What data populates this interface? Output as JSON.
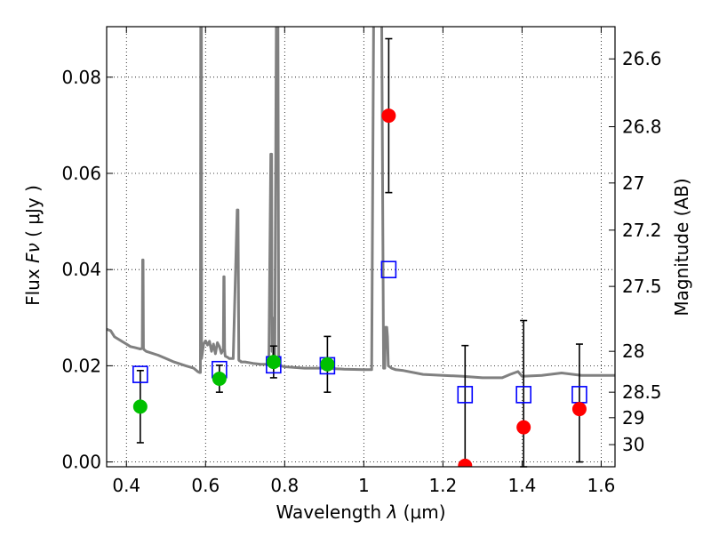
{
  "chart_data": {
    "type": "scatter",
    "title": "",
    "xlabel_prefix": "Wavelength  ",
    "xlabel_symbol": "λ",
    "xlabel_unit": " (μm)",
    "ylabel_prefix": "Flux  ",
    "ylabel_symbol": "Fν",
    "ylabel_unit": "  ( μJy )",
    "y2label": "Magnitude (AB)",
    "xlim": [
      0.35,
      1.635
    ],
    "ylim": [
      -0.001,
      0.0905
    ],
    "grid": true,
    "xticks": [
      0.4,
      0.6,
      0.8,
      1.0,
      1.2,
      1.4,
      1.6
    ],
    "xtick_labels": [
      "0.4",
      "0.6",
      "0.8",
      "1",
      "1.2",
      "1.4",
      "1.6"
    ],
    "yticks": [
      0.0,
      0.02,
      0.04,
      0.06,
      0.08
    ],
    "ytick_labels": [
      "0.00",
      "0.02",
      "0.04",
      "0.06",
      "0.08"
    ],
    "y2ticks": [
      {
        "label": "26.6",
        "flux": 0.0838
      },
      {
        "label": "26.8",
        "flux": 0.0697
      },
      {
        "label": "27",
        "flux": 0.058
      },
      {
        "label": "27.2",
        "flux": 0.0482
      },
      {
        "label": "27.5",
        "flux": 0.0365
      },
      {
        "label": "28",
        "flux": 0.023
      },
      {
        "label": "28.5",
        "flux": 0.0145
      },
      {
        "label": "29",
        "flux": 0.0092
      },
      {
        "label": "30",
        "flux": 0.0036
      }
    ],
    "series": [
      {
        "marker": "line",
        "color": "#808080",
        "x": [
          0.35,
          0.36,
          0.37,
          0.38,
          0.39,
          0.4,
          0.41,
          0.42,
          0.43,
          0.435,
          0.44,
          0.441,
          0.442,
          0.443,
          0.445,
          0.45,
          0.48,
          0.5,
          0.52,
          0.55,
          0.57,
          0.58,
          0.585,
          0.587,
          0.588,
          0.5885,
          0.589,
          0.5895,
          0.59,
          0.595,
          0.6,
          0.605,
          0.61,
          0.615,
          0.62,
          0.625,
          0.63,
          0.635,
          0.64,
          0.645,
          0.646,
          0.647,
          0.648,
          0.649,
          0.65,
          0.655,
          0.66,
          0.67,
          0.68,
          0.682,
          0.684,
          0.686,
          0.688,
          0.69,
          0.7,
          0.72,
          0.74,
          0.76,
          0.765,
          0.767,
          0.768,
          0.769,
          0.772,
          0.775,
          0.779,
          0.78,
          0.781,
          0.782,
          0.783,
          0.785,
          0.79,
          0.8,
          0.85,
          0.9,
          0.95,
          1.0,
          1.02,
          1.025,
          1.03,
          1.035,
          1.04,
          1.045,
          1.05,
          1.053,
          1.055,
          1.058,
          1.06,
          1.062,
          1.07,
          1.08,
          1.1,
          1.15,
          1.2,
          1.25,
          1.3,
          1.35,
          1.37,
          1.39,
          1.4,
          1.45,
          1.5,
          1.55,
          1.6,
          1.635
        ],
        "y": [
          0.0276,
          0.0273,
          0.026,
          0.0255,
          0.025,
          0.0245,
          0.024,
          0.0238,
          0.0236,
          0.0235,
          0.0236,
          0.042,
          0.042,
          0.0236,
          0.0233,
          0.023,
          0.0222,
          0.0215,
          0.0208,
          0.02,
          0.0195,
          0.0188,
          0.0186,
          0.0186,
          0.095,
          0.095,
          0.095,
          0.095,
          0.0215,
          0.0245,
          0.0252,
          0.0243,
          0.0251,
          0.023,
          0.0245,
          0.0225,
          0.0248,
          0.024,
          0.0226,
          0.0235,
          0.0385,
          0.0385,
          0.0235,
          0.0225,
          0.022,
          0.0218,
          0.0215,
          0.0215,
          0.0524,
          0.0524,
          0.0212,
          0.021,
          0.021,
          0.0208,
          0.0208,
          0.0205,
          0.0203,
          0.0203,
          0.064,
          0.064,
          0.023,
          0.03,
          0.02,
          0.02,
          0.095,
          0.095,
          0.095,
          0.095,
          0.095,
          0.02,
          0.02,
          0.0198,
          0.0195,
          0.0195,
          0.0193,
          0.0192,
          0.0192,
          0.095,
          0.095,
          0.095,
          0.095,
          0.095,
          0.0195,
          0.0195,
          0.028,
          0.028,
          0.026,
          0.02,
          0.0195,
          0.0192,
          0.019,
          0.0182,
          0.018,
          0.0178,
          0.0175,
          0.0175,
          0.0182,
          0.0188,
          0.0178,
          0.018,
          0.0185,
          0.018,
          0.018,
          0.018
        ]
      },
      {
        "marker": "square",
        "color": "#0000ff",
        "x": [
          0.435,
          0.635,
          0.772,
          0.908,
          1.063,
          1.256,
          1.404,
          1.545
        ],
        "y": [
          0.0182,
          0.0192,
          0.0202,
          0.02,
          0.04,
          0.014,
          0.014,
          0.014
        ]
      },
      {
        "marker": "circle",
        "color": "#00c000",
        "x": [
          0.435,
          0.635,
          0.772,
          0.908
        ],
        "y": [
          0.0115,
          0.0173,
          0.0208,
          0.0203
        ],
        "yerr_low": [
          0.0075,
          0.0028,
          0.0033,
          0.0058
        ],
        "yerr_high": [
          0.0075,
          0.0028,
          0.0033,
          0.0058
        ]
      },
      {
        "marker": "circle",
        "color": "#ff0000",
        "x": [
          1.063,
          1.256,
          1.404,
          1.545
        ],
        "y": [
          0.072,
          -0.0008,
          0.0072,
          0.011
        ],
        "yerr_low": [
          0.016,
          0.0,
          0.0082,
          0.011
        ],
        "yerr_high": [
          0.016,
          0.025,
          0.0222,
          0.0135
        ]
      }
    ]
  }
}
